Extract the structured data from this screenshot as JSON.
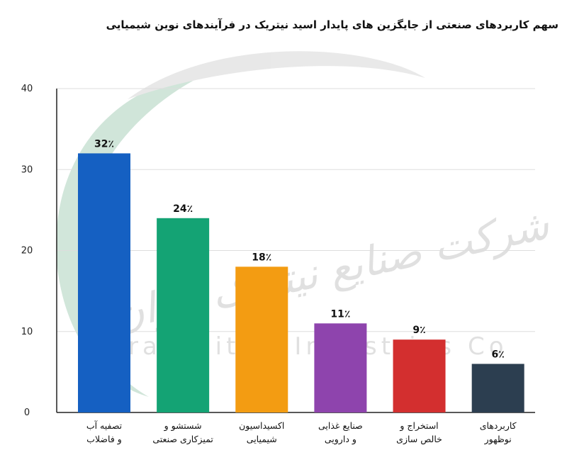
{
  "chart_data": {
    "type": "bar",
    "title": "سهم کاربردهای صنعتی از جایگزین های پایدار اسید نیتریک در فرآیندهای نوین شیمیایی",
    "xlabel": "",
    "ylabel": "",
    "ylim": [
      0,
      40
    ],
    "yticks": [
      0,
      10,
      20,
      30,
      40
    ],
    "grid": true,
    "legend": "none",
    "categories": [
      [
        "تصفیه آب",
        "و فاضلاب"
      ],
      [
        "شستشو و",
        "تمیزکاری صنعتی"
      ],
      [
        "اکسیداسیون",
        "شیمیایی"
      ],
      [
        "صنایع غذایی",
        "و دارویی"
      ],
      [
        "استخراج و",
        "خالص سازی"
      ],
      [
        "کاربردهای",
        "نوظهور"
      ]
    ],
    "values": [
      32,
      24,
      18,
      11,
      9,
      6
    ],
    "value_labels": [
      "32٪",
      "24٪",
      "18٪",
      "11٪",
      "9٪",
      "6٪"
    ],
    "colors": [
      "#1560c2",
      "#14a374",
      "#f39c12",
      "#8e44ad",
      "#d32f2f",
      "#2c3e50"
    ]
  },
  "watermark": {
    "fa": "شرکت صنایع نیتریک ایران",
    "en": "Iran Nitric Industries Co"
  }
}
